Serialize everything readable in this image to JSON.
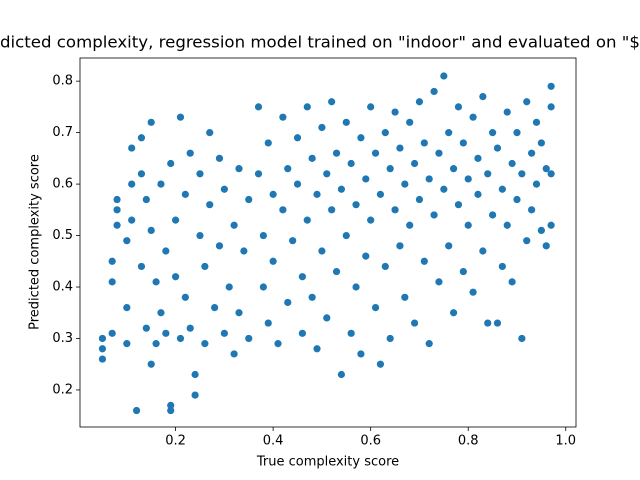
{
  "chart_data": {
    "type": "scatter",
    "title": "dicted complexity, regression model trained on \"indoor\" and evaluated on \"$",
    "x_label": "True complexity score",
    "y_label": "Predicted complexity score",
    "color": "#1f77b4",
    "xlim": [
      0.004,
      1.021
    ],
    "ylim": [
      0.128,
      0.845
    ],
    "xticks": [
      0.2,
      0.4,
      0.6,
      0.8,
      {
        "value": 1,
        "label": "1.0"
      }
    ],
    "yticks": [
      0.2,
      0.3,
      0.4,
      0.5,
      0.6,
      0.7,
      0.8
    ],
    "x": [
      0.05,
      0.05,
      0.05,
      0.07,
      0.07,
      0.07,
      0.08,
      0.08,
      0.08,
      0.1,
      0.1,
      0.1,
      0.11,
      0.11,
      0.11,
      0.12,
      0.13,
      0.13,
      0.13,
      0.14,
      0.14,
      0.15,
      0.15,
      0.15,
      0.16,
      0.16,
      0.17,
      0.17,
      0.18,
      0.18,
      0.19,
      0.19,
      0.19,
      0.2,
      0.2,
      0.21,
      0.21,
      0.22,
      0.22,
      0.23,
      0.23,
      0.24,
      0.24,
      0.25,
      0.25,
      0.26,
      0.26,
      0.27,
      0.27,
      0.28,
      0.29,
      0.29,
      0.3,
      0.3,
      0.31,
      0.32,
      0.32,
      0.33,
      0.33,
      0.34,
      0.35,
      0.35,
      0.37,
      0.37,
      0.38,
      0.38,
      0.39,
      0.39,
      0.4,
      0.4,
      0.41,
      0.42,
      0.42,
      0.43,
      0.43,
      0.44,
      0.45,
      0.45,
      0.46,
      0.46,
      0.47,
      0.47,
      0.48,
      0.48,
      0.49,
      0.49,
      0.5,
      0.5,
      0.51,
      0.51,
      0.52,
      0.52,
      0.53,
      0.53,
      0.54,
      0.54,
      0.55,
      0.55,
      0.56,
      0.56,
      0.57,
      0.57,
      0.58,
      0.58,
      0.59,
      0.59,
      0.6,
      0.6,
      0.61,
      0.61,
      0.62,
      0.62,
      0.63,
      0.63,
      0.64,
      0.64,
      0.65,
      0.65,
      0.66,
      0.66,
      0.67,
      0.67,
      0.68,
      0.68,
      0.69,
      0.69,
      0.7,
      0.7,
      0.71,
      0.71,
      0.72,
      0.72,
      0.73,
      0.73,
      0.74,
      0.74,
      0.75,
      0.75,
      0.76,
      0.76,
      0.77,
      0.77,
      0.78,
      0.78,
      0.79,
      0.79,
      0.8,
      0.8,
      0.81,
      0.81,
      0.82,
      0.82,
      0.83,
      0.83,
      0.84,
      0.84,
      0.85,
      0.85,
      0.86,
      0.86,
      0.87,
      0.87,
      0.88,
      0.88,
      0.89,
      0.89,
      0.9,
      0.9,
      0.91,
      0.91,
      0.92,
      0.92,
      0.93,
      0.93,
      0.94,
      0.94,
      0.95,
      0.95,
      0.96,
      0.96,
      0.97,
      0.97,
      0.97,
      0.97
    ],
    "values": [
      0.26,
      0.3,
      0.28,
      0.45,
      0.41,
      0.31,
      0.57,
      0.52,
      0.55,
      0.36,
      0.49,
      0.29,
      0.67,
      0.6,
      0.53,
      0.16,
      0.69,
      0.62,
      0.44,
      0.57,
      0.32,
      0.72,
      0.25,
      0.51,
      0.41,
      0.29,
      0.6,
      0.35,
      0.47,
      0.31,
      0.16,
      0.17,
      0.64,
      0.53,
      0.42,
      0.73,
      0.3,
      0.58,
      0.38,
      0.66,
      0.32,
      0.19,
      0.23,
      0.5,
      0.62,
      0.44,
      0.29,
      0.7,
      0.56,
      0.36,
      0.65,
      0.48,
      0.31,
      0.59,
      0.4,
      0.27,
      0.52,
      0.63,
      0.35,
      0.47,
      0.57,
      0.3,
      0.75,
      0.62,
      0.5,
      0.4,
      0.68,
      0.33,
      0.58,
      0.45,
      0.29,
      0.73,
      0.55,
      0.63,
      0.37,
      0.49,
      0.69,
      0.6,
      0.42,
      0.31,
      0.75,
      0.53,
      0.65,
      0.38,
      0.58,
      0.28,
      0.71,
      0.47,
      0.62,
      0.34,
      0.55,
      0.76,
      0.43,
      0.66,
      0.23,
      0.59,
      0.5,
      0.72,
      0.31,
      0.64,
      0.4,
      0.56,
      0.69,
      0.27,
      0.61,
      0.46,
      0.75,
      0.53,
      0.36,
      0.66,
      0.25,
      0.58,
      0.7,
      0.44,
      0.63,
      0.3,
      0.55,
      0.74,
      0.48,
      0.67,
      0.38,
      0.6,
      0.72,
      0.52,
      0.33,
      0.64,
      0.57,
      0.76,
      0.45,
      0.68,
      0.29,
      0.61,
      0.78,
      0.54,
      0.41,
      0.66,
      0.81,
      0.59,
      0.7,
      0.48,
      0.35,
      0.63,
      0.75,
      0.56,
      0.43,
      0.68,
      0.61,
      0.52,
      0.73,
      0.39,
      0.65,
      0.58,
      0.77,
      0.47,
      0.33,
      0.62,
      0.7,
      0.54,
      0.33,
      0.67,
      0.59,
      0.44,
      0.74,
      0.52,
      0.64,
      0.41,
      0.57,
      0.7,
      0.3,
      0.62,
      0.49,
      0.76,
      0.55,
      0.66,
      0.72,
      0.6,
      0.51,
      0.68,
      0.48,
      0.63,
      0.79,
      0.75,
      0.52,
      0.62
    ]
  }
}
